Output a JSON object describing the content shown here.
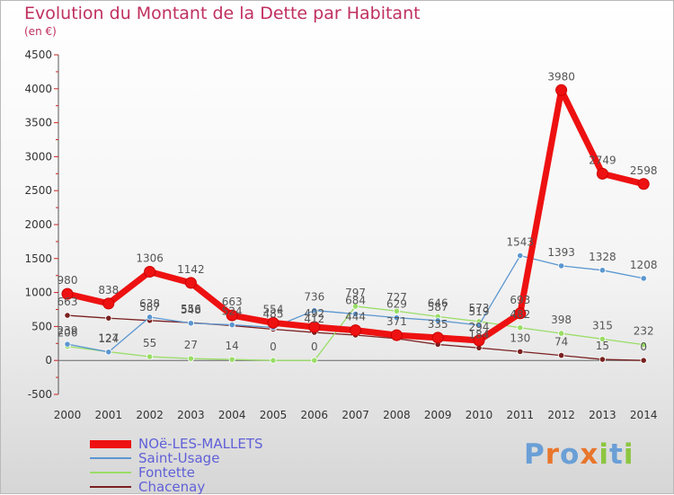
{
  "title": "Evolution du Montant de la Dette par Habitant",
  "subtitle": "(en €)",
  "logo": [
    "P",
    "r",
    "o",
    "x",
    "i",
    "t",
    "i"
  ],
  "logo_colors": [
    "#6a9fd6",
    "#e8762c",
    "#6a9fd6",
    "#e8762c",
    "#8cc63f",
    "#6a9fd6",
    "#8cc63f"
  ],
  "chart_data": {
    "type": "line",
    "x": [
      "2000",
      "2001",
      "2002",
      "2003",
      "2004",
      "2005",
      "2006",
      "2007",
      "2008",
      "2009",
      "2010",
      "2011",
      "2012",
      "2013",
      "2014"
    ],
    "ylim": [
      -500,
      4500
    ],
    "yticks": [
      "-500",
      "0",
      "500",
      "1000",
      "1500",
      "2000",
      "2500",
      "3000",
      "3500",
      "4000",
      "4500"
    ],
    "legend_position": "bottom-left",
    "series": [
      {
        "name": "NOë-LES-MALLETS",
        "color": "#ee1111",
        "values": [
          980,
          838,
          1306,
          1142,
          663,
          554,
          492,
          444,
          371,
          335,
          294,
          693,
          3980,
          2749,
          2598
        ],
        "labels": [
          "980",
          "838",
          "1306",
          "1142",
          "663",
          "554",
          "492",
          "444",
          "371",
          "335",
          "294",
          "693",
          "3980",
          "2749",
          "2598"
        ]
      },
      {
        "name": "Saint-Usage",
        "color": "#5a96d0",
        "values": [
          239,
          124,
          638,
          548,
          524,
          485,
          736,
          684,
          629,
          587,
          519,
          1543,
          1393,
          1328,
          1208
        ],
        "labels": [
          "239",
          "124",
          "638",
          "548",
          "524",
          "485",
          "736",
          "684",
          "629",
          "587",
          "519",
          "1543",
          "1393",
          "1328",
          "1208"
        ]
      },
      {
        "name": "Fontette",
        "color": "#99dd66",
        "values": [
          206,
          127,
          55,
          27,
          14,
          0,
          0,
          797,
          727,
          646,
          573,
          482,
          398,
          315,
          232
        ],
        "labels": [
          "206",
          "127",
          "55",
          "27",
          "14",
          "0",
          "0",
          "797",
          "727",
          "646",
          "573",
          "482",
          "398",
          "315",
          "232"
        ]
      },
      {
        "name": "Chacenay",
        "color": "#7a2020",
        "values": [
          663,
          622,
          587,
          556,
          513,
          459,
          412,
          373,
          322,
          235,
          184,
          130,
          74,
          15,
          0
        ],
        "labels": [
          "663",
          "",
          "587",
          "556",
          "",
          "",
          "412",
          "",
          "",
          "",
          "184",
          "130",
          "74",
          "15",
          "0"
        ]
      }
    ]
  }
}
